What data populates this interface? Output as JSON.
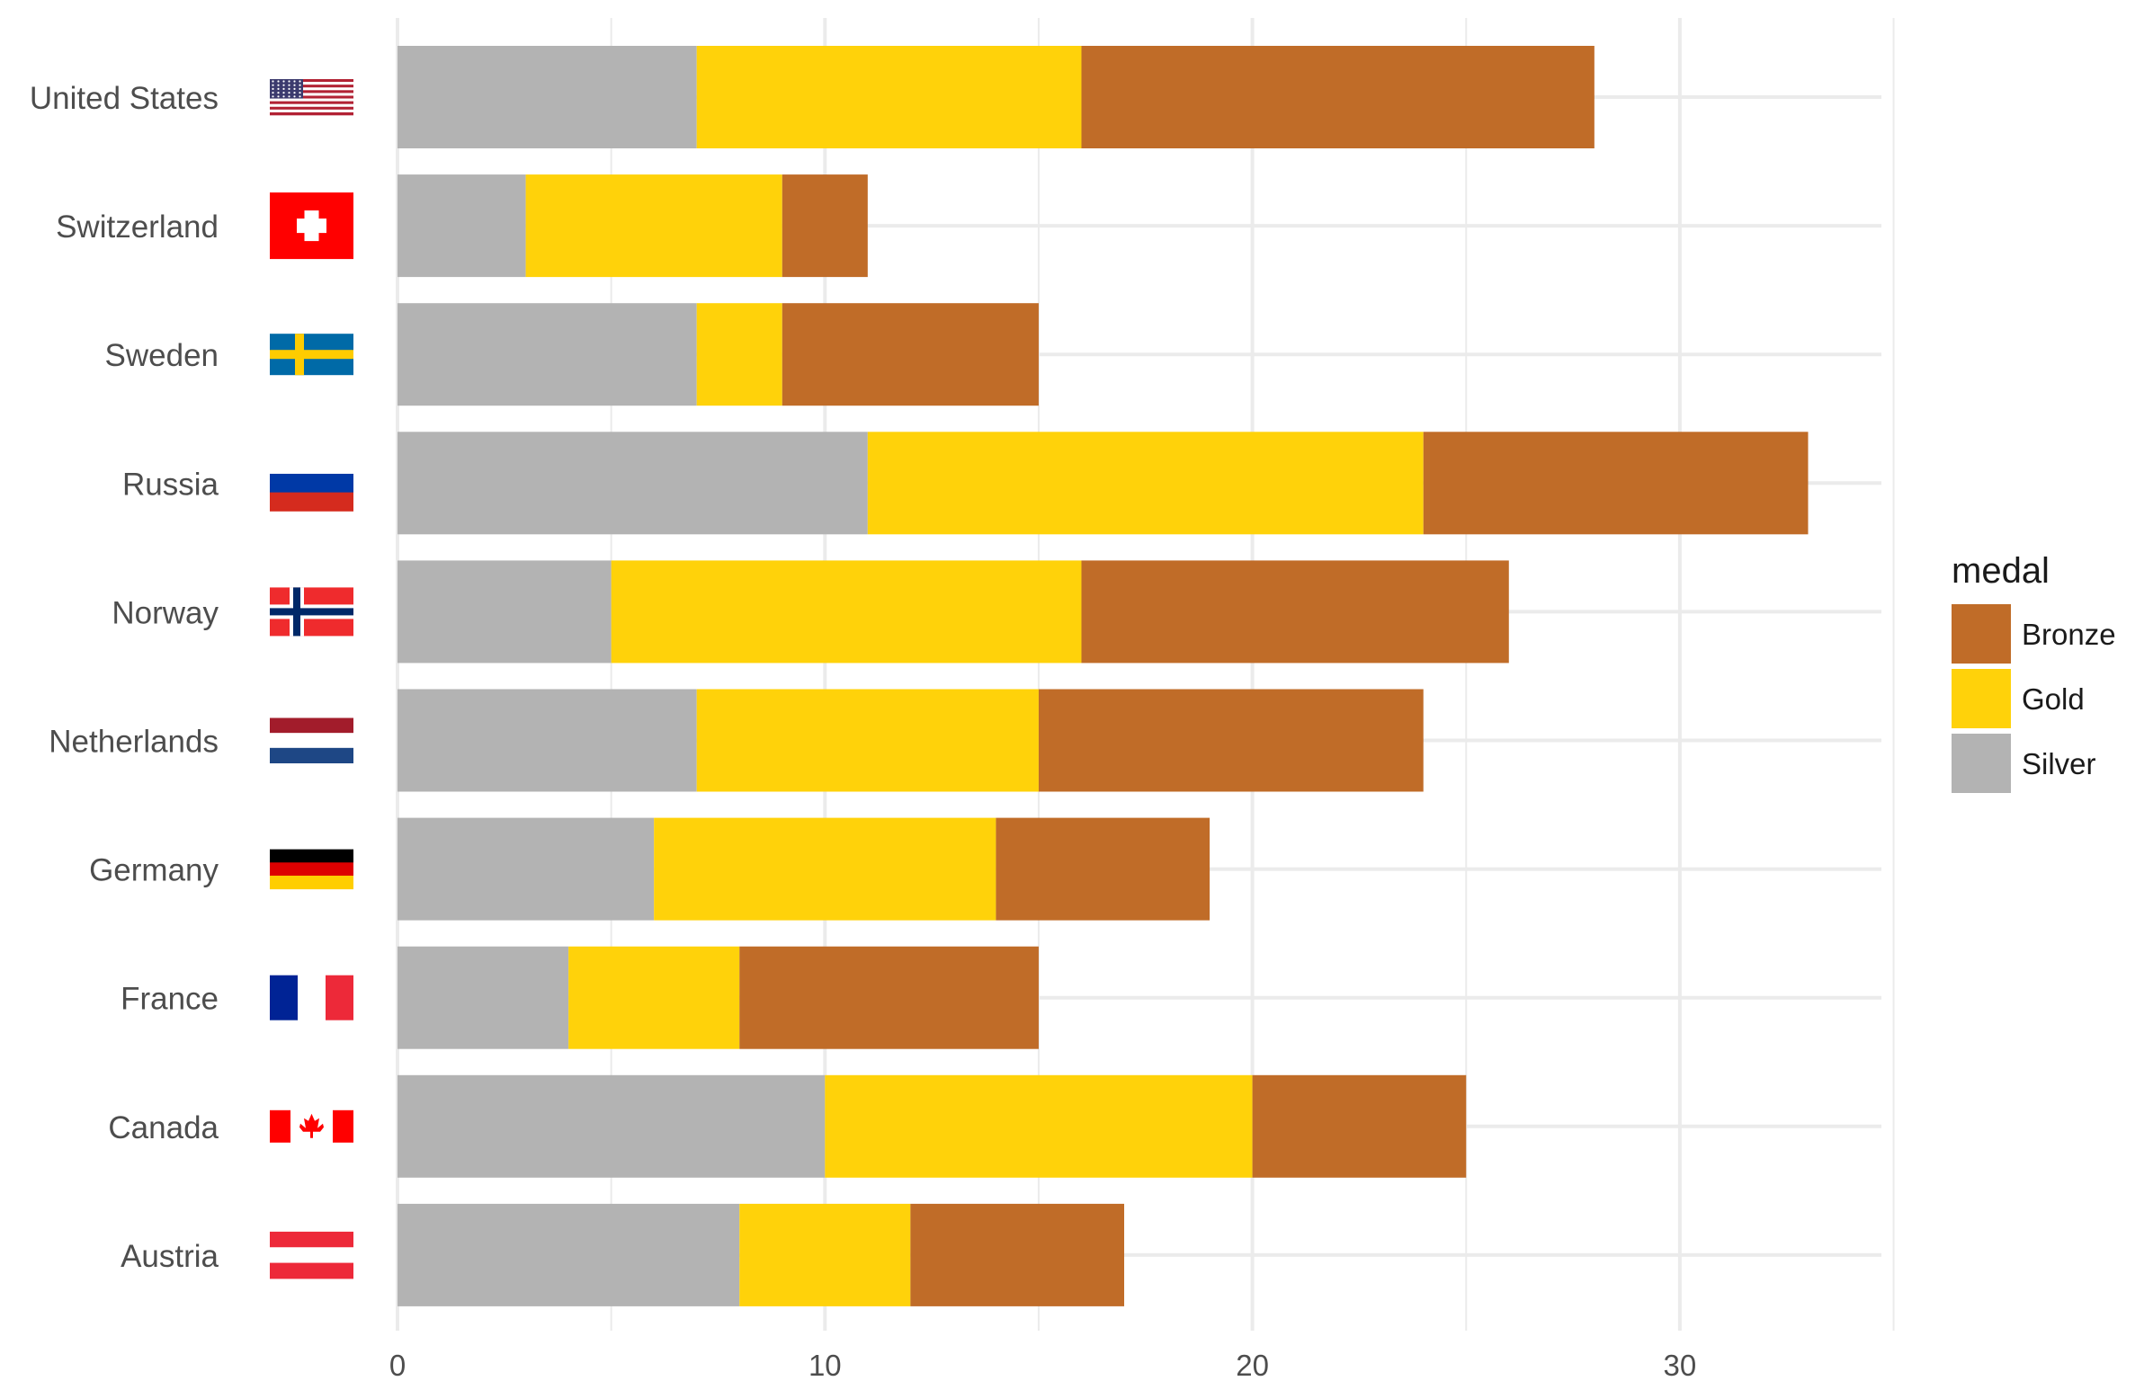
{
  "chart_data": {
    "type": "bar",
    "orientation": "horizontal",
    "stacked": true,
    "title": "",
    "xlabel": "",
    "ylabel": "",
    "xlim": [
      0,
      35
    ],
    "x_ticks": [
      0,
      10,
      20,
      30
    ],
    "grid": true,
    "categories": [
      "United States",
      "Switzerland",
      "Sweden",
      "Russia",
      "Norway",
      "Netherlands",
      "Germany",
      "France",
      "Canada",
      "Austria"
    ],
    "stack_order": [
      "Silver",
      "Gold",
      "Bronze"
    ],
    "series": [
      {
        "name": "Silver",
        "color": "#b3b3b3",
        "values": [
          7,
          3,
          7,
          11,
          5,
          7,
          6,
          4,
          10,
          8
        ]
      },
      {
        "name": "Gold",
        "color": "#ffd20a",
        "values": [
          9,
          6,
          2,
          13,
          11,
          8,
          8,
          4,
          10,
          4
        ]
      },
      {
        "name": "Bronze",
        "color": "#c06c28",
        "values": [
          12,
          2,
          6,
          9,
          10,
          9,
          5,
          7,
          5,
          5
        ]
      }
    ],
    "legend": {
      "title": "medal",
      "position": "right",
      "entries": [
        {
          "label": "Bronze",
          "color": "#c06c28"
        },
        {
          "label": "Gold",
          "color": "#ffd20a"
        },
        {
          "label": "Silver",
          "color": "#b3b3b3"
        }
      ]
    },
    "flags": [
      "us-flag",
      "swiss-flag",
      "swedish-flag",
      "russian-flag",
      "norwegian-flag",
      "dutch-flag",
      "german-flag",
      "french-flag",
      "canadian-flag",
      "austrian-flag"
    ]
  },
  "colors": {
    "grid": "#ebebeb",
    "text": "#4d4d4d",
    "legend_title": "#1a1a1a"
  }
}
